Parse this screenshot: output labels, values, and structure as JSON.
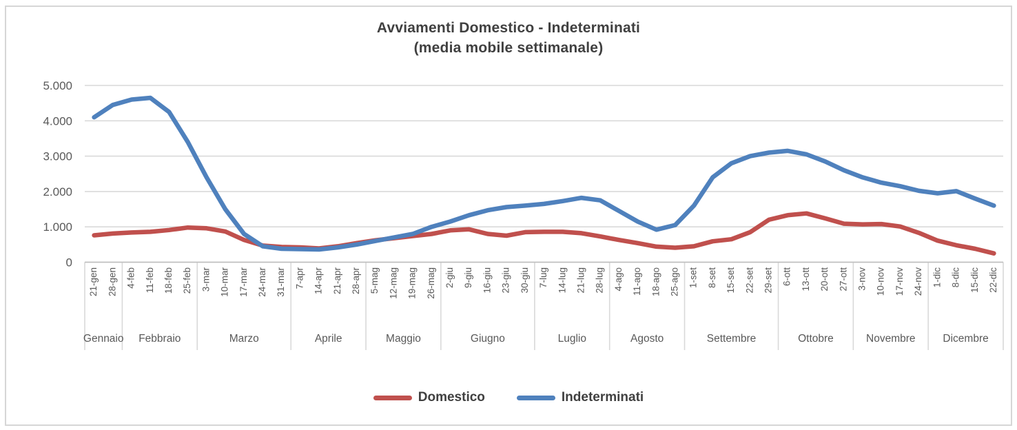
{
  "chart_data": {
    "type": "line",
    "title": "Avviamenti Domestico - Indeterminati",
    "subtitle": "(media mobile settimanale)",
    "grid": "horizontal-on",
    "legend_position": "bottom",
    "ylim": [
      0,
      5000
    ],
    "y_ticks": [
      {
        "label": "5.000",
        "value": 5000
      },
      {
        "label": "4.000",
        "value": 4000
      },
      {
        "label": "3.000",
        "value": 3000
      },
      {
        "label": "2.000",
        "value": 2000
      },
      {
        "label": "1.000",
        "value": 1000
      },
      {
        "label": "0",
        "value": 0
      }
    ],
    "categories": [
      "21-gen",
      "28-gen",
      "4-feb",
      "11-feb",
      "18-feb",
      "25-feb",
      "3-mar",
      "10-mar",
      "17-mar",
      "24-mar",
      "31-mar",
      "7-apr",
      "14-apr",
      "21-apr",
      "28-apr",
      "5-mag",
      "12-mag",
      "19-mag",
      "26-mag",
      "2-giu",
      "9-giu",
      "16-giu",
      "23-giu",
      "30-giu",
      "7-lug",
      "14-lug",
      "21-lug",
      "28-lug",
      "4-ago",
      "11-ago",
      "18-ago",
      "25-ago",
      "1-set",
      "8-set",
      "15-set",
      "22-set",
      "29-set",
      "6-ott",
      "13-ott",
      "20-ott",
      "27-ott",
      "3-nov",
      "10-nov",
      "17-nov",
      "24-nov",
      "1-dic",
      "8-dic",
      "15-dic",
      "22-dic"
    ],
    "month_groups": [
      {
        "label": "Gennaio",
        "count": 2
      },
      {
        "label": "Febbraio",
        "count": 4
      },
      {
        "label": "Marzo",
        "count": 5
      },
      {
        "label": "Aprile",
        "count": 4
      },
      {
        "label": "Maggio",
        "count": 4
      },
      {
        "label": "Giugno",
        "count": 5
      },
      {
        "label": "Luglio",
        "count": 4
      },
      {
        "label": "Agosto",
        "count": 4
      },
      {
        "label": "Settembre",
        "count": 5
      },
      {
        "label": "Ottobre",
        "count": 4
      },
      {
        "label": "Novembre",
        "count": 4
      },
      {
        "label": "Dicembre",
        "count": 4
      }
    ],
    "series": [
      {
        "name": "Domestico",
        "color": "#C0504D",
        "values": [
          760,
          810,
          840,
          860,
          910,
          980,
          960,
          870,
          630,
          470,
          430,
          420,
          390,
          450,
          540,
          620,
          680,
          740,
          800,
          900,
          930,
          800,
          750,
          850,
          860,
          860,
          820,
          730,
          630,
          540,
          440,
          410,
          450,
          590,
          650,
          850,
          1200,
          1330,
          1380,
          1240,
          1090,
          1070,
          1080,
          1010,
          830,
          610,
          480,
          380,
          250
        ]
      },
      {
        "name": "Indeterminati",
        "color": "#4F81BD",
        "values": [
          4100,
          4450,
          4600,
          4650,
          4250,
          3400,
          2400,
          1500,
          800,
          450,
          380,
          370,
          360,
          420,
          500,
          600,
          700,
          800,
          1000,
          1150,
          1330,
          1470,
          1560,
          1600,
          1650,
          1730,
          1820,
          1750,
          1450,
          1150,
          920,
          1050,
          1600,
          2400,
          2800,
          3000,
          3100,
          3150,
          3050,
          2850,
          2600,
          2400,
          2250,
          2150,
          2020,
          1950,
          2010,
          1800,
          1600
        ]
      }
    ],
    "colors": {
      "gridline": "#d9d9d9",
      "axis_line": "#bfbfbf",
      "axis_text": "#595959",
      "title_text": "#404040"
    }
  }
}
